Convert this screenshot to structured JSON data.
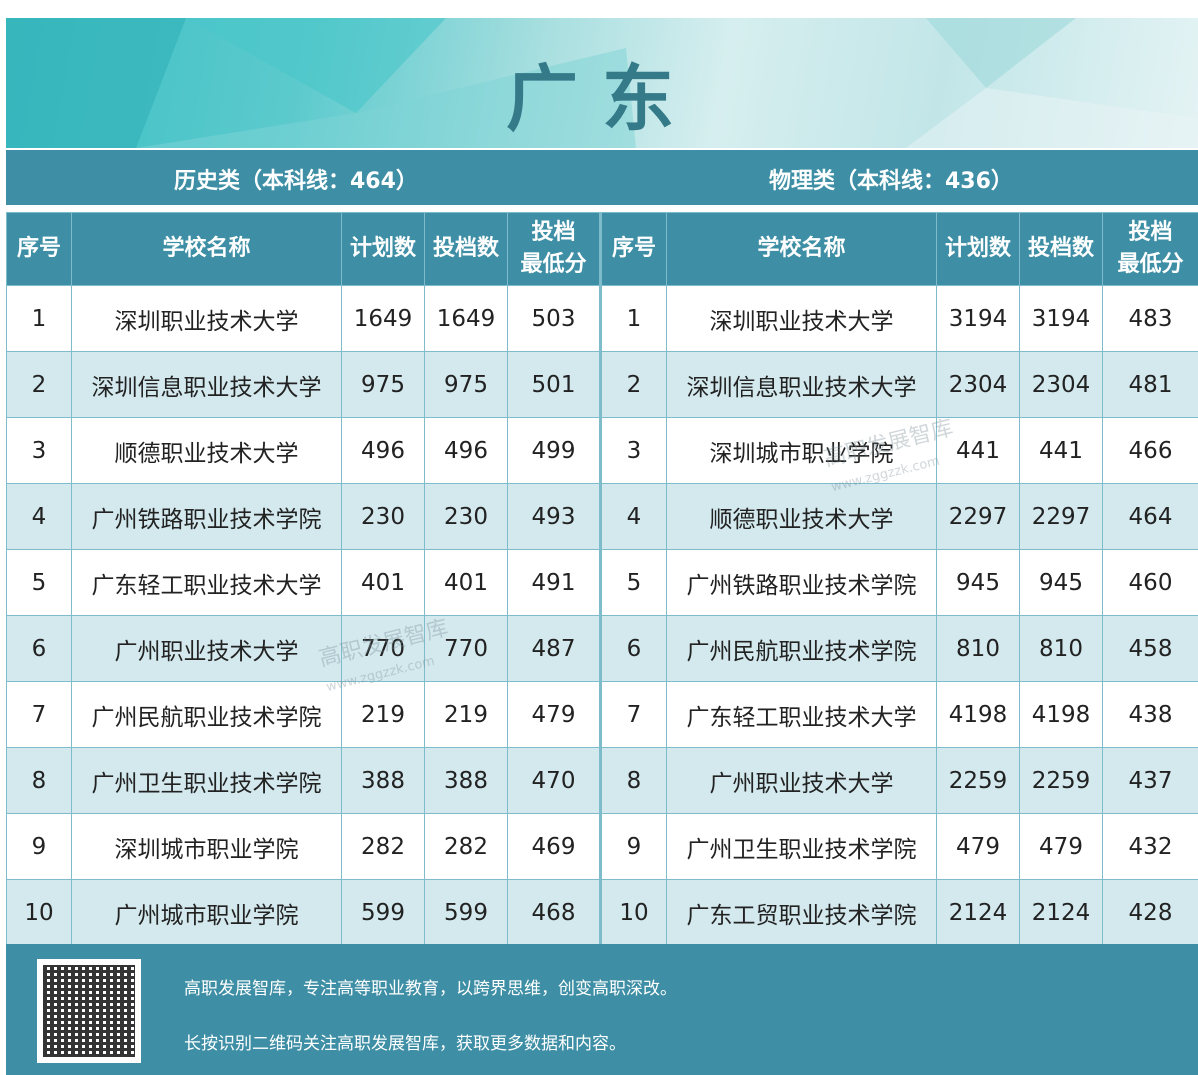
{
  "title": "广东",
  "history": {
    "label": "历史类（本科线：464）"
  },
  "physics": {
    "label": "物理类（本科线：436）"
  },
  "headers": [
    "序号",
    "学校名称",
    "计划数",
    "投档数",
    "投档\n最低分"
  ],
  "history_rows": [
    [
      "1",
      "深圳职业技术大学",
      "1649",
      "1649",
      "503"
    ],
    [
      "2",
      "深圳信息职业技术大学",
      "975",
      "975",
      "501"
    ],
    [
      "3",
      "顺德职业技术大学",
      "496",
      "496",
      "499"
    ],
    [
      "4",
      "广州铁路职业技术学院",
      "230",
      "230",
      "493"
    ],
    [
      "5",
      "广东轻工职业技术大学",
      "401",
      "401",
      "491"
    ],
    [
      "6",
      "广州职业技术大学",
      "770",
      "770",
      "487"
    ],
    [
      "7",
      "广州民航职业技术学院",
      "219",
      "219",
      "479"
    ],
    [
      "8",
      "广州卫生职业技术学院",
      "388",
      "388",
      "470"
    ],
    [
      "9",
      "深圳城市职业学院",
      "282",
      "282",
      "469"
    ],
    [
      "10",
      "广州城市职业学院",
      "599",
      "599",
      "468"
    ]
  ],
  "physics_rows": [
    [
      "1",
      "深圳职业技术大学",
      "3194",
      "3194",
      "483"
    ],
    [
      "2",
      "深圳信息职业技术大学",
      "2304",
      "2304",
      "481"
    ],
    [
      "3",
      "深圳城市职业学院",
      "441",
      "441",
      "466"
    ],
    [
      "4",
      "顺德职业技术大学",
      "2297",
      "2297",
      "464"
    ],
    [
      "5",
      "广州铁路职业技术学院",
      "945",
      "945",
      "460"
    ],
    [
      "6",
      "广州民航职业技术学院",
      "810",
      "810",
      "458"
    ],
    [
      "7",
      "广东轻工职业技术大学",
      "4198",
      "4198",
      "438"
    ],
    [
      "8",
      "广州职业技术大学",
      "2259",
      "2259",
      "437"
    ],
    [
      "9",
      "广州卫生职业技术学院",
      "479",
      "479",
      "432"
    ],
    [
      "10",
      "广东工贸职业技术学院",
      "2124",
      "2124",
      "428"
    ]
  ],
  "footer": {
    "line1": "高职发展智库，专注高等职业教育，以跨界思维，创变高职深改。",
    "line2": "长按识别二维码关注高职发展智库，获取更多数据和内容。",
    "qr_icon": "qr-code-icon"
  },
  "watermark": {
    "text": "高职发展智库",
    "url": "www.zggzzk.com"
  },
  "colors": {
    "primary": "#3e8fa5",
    "row_alt": "#d3e9ee",
    "title": "#357a89"
  }
}
